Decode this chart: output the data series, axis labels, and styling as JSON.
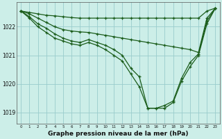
{
  "bg_color": "#cceee8",
  "line_color": "#1a5c1a",
  "grid_color": "#99cccc",
  "xlabel": "Graphe pression niveau de la mer (hPa)",
  "xlabel_fontsize": 6.5,
  "yticks": [
    1019,
    1020,
    1021,
    1022
  ],
  "xticks": [
    0,
    1,
    2,
    3,
    4,
    5,
    6,
    7,
    8,
    9,
    10,
    11,
    12,
    13,
    14,
    15,
    16,
    17,
    18,
    19,
    20,
    21,
    22,
    23
  ],
  "xlim": [
    -0.5,
    23.5
  ],
  "ylim": [
    1018.6,
    1022.85
  ],
  "series": [
    [
      1022.55,
      1022.5,
      1022.45,
      1022.4,
      1022.38,
      1022.35,
      1022.32,
      1022.3,
      1022.3,
      1022.3,
      1022.3,
      1022.3,
      1022.3,
      1022.3,
      1022.3,
      1022.3,
      1022.3,
      1022.3,
      1022.3,
      1022.3,
      1022.3,
      1022.3,
      1022.55,
      1022.65
    ],
    [
      1022.55,
      1022.45,
      1022.3,
      1022.15,
      1022.0,
      1021.9,
      1021.85,
      1021.82,
      1021.8,
      1021.75,
      1021.7,
      1021.65,
      1021.6,
      1021.55,
      1021.5,
      1021.45,
      1021.4,
      1021.35,
      1021.3,
      1021.25,
      1021.2,
      1021.1,
      1022.3,
      1022.65
    ],
    [
      1022.55,
      1022.35,
      1022.1,
      1021.95,
      1021.75,
      1021.6,
      1021.5,
      1021.45,
      1021.55,
      1021.45,
      1021.35,
      1021.2,
      1021.0,
      1020.55,
      1020.25,
      1019.15,
      1019.15,
      1019.25,
      1019.4,
      1020.2,
      1020.75,
      1021.05,
      1022.2,
      1022.65
    ],
    [
      1022.55,
      1022.3,
      1022.0,
      1021.8,
      1021.6,
      1021.5,
      1021.4,
      1021.35,
      1021.45,
      1021.35,
      1021.2,
      1021.0,
      1020.8,
      1020.35,
      1019.9,
      1019.15,
      1019.15,
      1019.15,
      1019.35,
      1020.1,
      1020.6,
      1021.0,
      1022.1,
      1022.65
    ]
  ]
}
